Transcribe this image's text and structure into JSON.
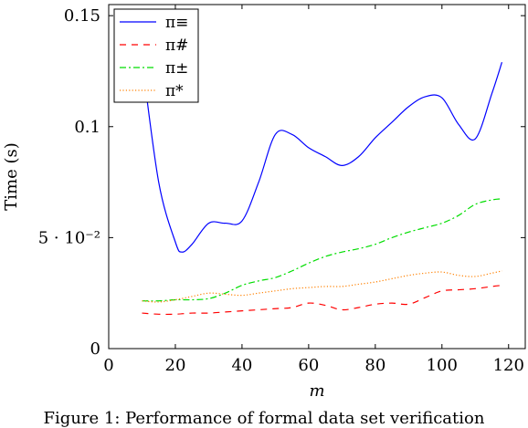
{
  "caption": "Figure 1: Performance of formal data set verification",
  "chart_data": {
    "type": "line",
    "xlabel": "m",
    "ylabel": "Time (s)",
    "xlim": [
      0,
      125
    ],
    "ylim": [
      0,
      0.155
    ],
    "xticks": [
      0,
      20,
      40,
      60,
      80,
      100,
      120
    ],
    "xtick_labels": [
      "0",
      "20",
      "40",
      "60",
      "80",
      "100",
      "120"
    ],
    "yticks": [
      0,
      0.05,
      0.1,
      0.15
    ],
    "ytick_labels": [
      "0",
      "5 · 10⁻²",
      "0.1",
      "0.15"
    ],
    "legend_position": "top-left",
    "grid": false,
    "series": [
      {
        "name": "π≡",
        "color": "#0000ff",
        "dash": "solid",
        "x": [
          10,
          15,
          20,
          22,
          25,
          30,
          35,
          40,
          45,
          50,
          55,
          60,
          65,
          70,
          75,
          80,
          85,
          90,
          95,
          100,
          105,
          110,
          115,
          118
        ],
        "y": [
          0.13,
          0.075,
          0.048,
          0.0435,
          0.047,
          0.0565,
          0.0565,
          0.0575,
          0.075,
          0.0965,
          0.0965,
          0.0905,
          0.0865,
          0.0825,
          0.0865,
          0.095,
          0.102,
          0.109,
          0.1135,
          0.113,
          0.101,
          0.0945,
          0.115,
          0.129
        ]
      },
      {
        "name": "π#",
        "color": "#ff0000",
        "dash": "dashed",
        "x": [
          10,
          15,
          20,
          25,
          30,
          35,
          40,
          45,
          50,
          55,
          60,
          65,
          70,
          75,
          80,
          85,
          90,
          95,
          100,
          105,
          110,
          115,
          118
        ],
        "y": [
          0.016,
          0.0155,
          0.0155,
          0.016,
          0.016,
          0.0165,
          0.017,
          0.0175,
          0.018,
          0.0185,
          0.0205,
          0.0195,
          0.0175,
          0.0185,
          0.02,
          0.0205,
          0.02,
          0.023,
          0.026,
          0.0265,
          0.027,
          0.028,
          0.0285
        ]
      },
      {
        "name": "π±",
        "color": "#00dd00",
        "dash": "dashdot",
        "x": [
          10,
          15,
          20,
          25,
          30,
          35,
          40,
          45,
          50,
          55,
          60,
          65,
          70,
          75,
          80,
          85,
          90,
          95,
          100,
          105,
          110,
          115,
          118
        ],
        "y": [
          0.0215,
          0.0215,
          0.022,
          0.022,
          0.0225,
          0.025,
          0.0285,
          0.0305,
          0.032,
          0.035,
          0.0385,
          0.0415,
          0.0435,
          0.045,
          0.047,
          0.05,
          0.0525,
          0.0545,
          0.0565,
          0.06,
          0.065,
          0.067,
          0.0675
        ]
      },
      {
        "name": "π*",
        "color": "#ff8000",
        "dash": "dotted",
        "x": [
          10,
          15,
          20,
          25,
          30,
          35,
          40,
          45,
          50,
          55,
          60,
          65,
          70,
          75,
          80,
          85,
          90,
          95,
          100,
          105,
          110,
          115,
          118
        ],
        "y": [
          0.0215,
          0.021,
          0.022,
          0.0235,
          0.025,
          0.0245,
          0.024,
          0.025,
          0.026,
          0.027,
          0.0275,
          0.028,
          0.028,
          0.029,
          0.03,
          0.0315,
          0.033,
          0.034,
          0.0345,
          0.033,
          0.0325,
          0.034,
          0.035
        ]
      }
    ]
  }
}
